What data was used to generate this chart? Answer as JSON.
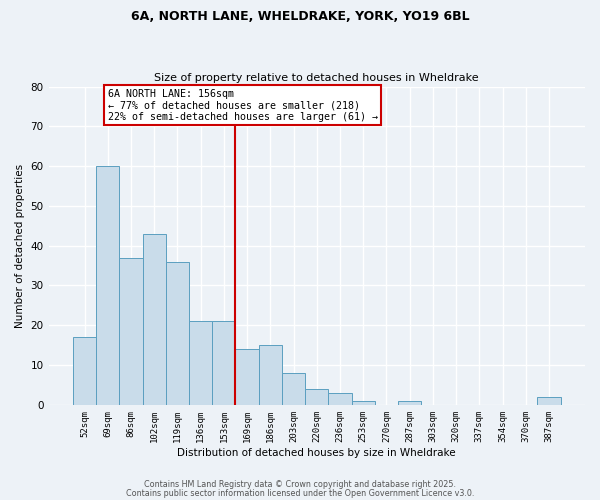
{
  "title1": "6A, NORTH LANE, WHELDRAKE, YORK, YO19 6BL",
  "title2": "Size of property relative to detached houses in Wheldrake",
  "xlabel": "Distribution of detached houses by size in Wheldrake",
  "ylabel": "Number of detached properties",
  "bar_labels": [
    "52sqm",
    "69sqm",
    "86sqm",
    "102sqm",
    "119sqm",
    "136sqm",
    "153sqm",
    "169sqm",
    "186sqm",
    "203sqm",
    "220sqm",
    "236sqm",
    "253sqm",
    "270sqm",
    "287sqm",
    "303sqm",
    "320sqm",
    "337sqm",
    "354sqm",
    "370sqm",
    "387sqm"
  ],
  "bar_values": [
    17,
    60,
    37,
    43,
    36,
    21,
    21,
    14,
    15,
    8,
    4,
    3,
    1,
    0,
    1,
    0,
    0,
    0,
    0,
    0,
    2
  ],
  "bar_color": "#c9dcea",
  "bar_edge_color": "#5b9fc0",
  "vline_color": "#cc0000",
  "annotation_title": "6A NORTH LANE: 156sqm",
  "annotation_line1": "← 77% of detached houses are smaller (218)",
  "annotation_line2": "22% of semi-detached houses are larger (61) →",
  "annotation_box_color": "#ffffff",
  "annotation_box_edge": "#cc0000",
  "ylim": [
    0,
    80
  ],
  "yticks": [
    0,
    10,
    20,
    30,
    40,
    50,
    60,
    70,
    80
  ],
  "bg_color": "#edf2f7",
  "grid_color": "#ffffff",
  "footer1": "Contains HM Land Registry data © Crown copyright and database right 2025.",
  "footer2": "Contains public sector information licensed under the Open Government Licence v3.0."
}
